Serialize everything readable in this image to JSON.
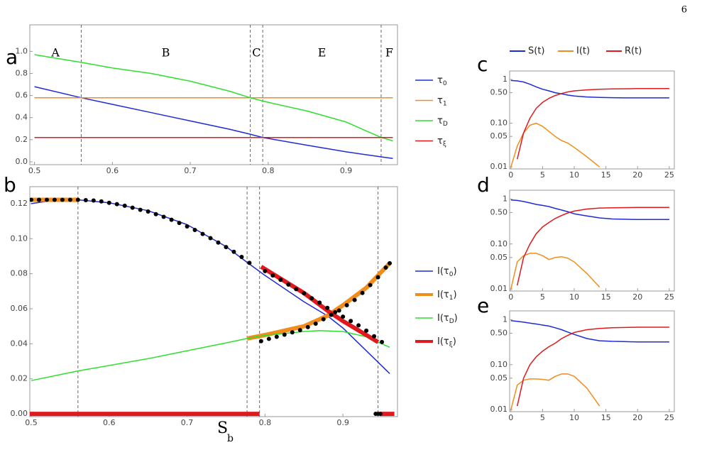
{
  "page_number": 6,
  "chart_data": [
    {
      "type": "line",
      "panel_label": "a",
      "xlim": [
        0.494,
        0.966
      ],
      "ylim": [
        -0.026,
        1.24
      ],
      "xticks": [
        0.5,
        0.6,
        0.7,
        0.8,
        0.9
      ],
      "yticks": [
        {
          "value": 0,
          "label": "0.0"
        },
        0.2,
        0.4,
        0.6,
        0.8,
        {
          "value": 1,
          "label": "1.0"
        }
      ],
      "vlines": [
        0.56,
        0.777,
        0.793,
        0.945
      ],
      "regions": [
        "A",
        "B",
        "C",
        "E",
        "F"
      ],
      "legend": "right",
      "x": [
        0.5,
        0.56,
        0.6,
        0.65,
        0.7,
        0.75,
        0.777,
        0.793,
        0.85,
        0.9,
        0.945,
        0.96
      ],
      "series": [
        {
          "name": "τ0",
          "color": "#1f2bd6",
          "values": [
            0.68,
            0.58,
            0.52,
            0.445,
            0.37,
            0.295,
            0.25,
            0.22,
            0.15,
            0.09,
            0.045,
            0.03
          ]
        },
        {
          "name": "τ1",
          "color": "#f28c1c",
          "values": [
            0.58,
            0.58,
            0.58,
            0.58,
            0.58,
            0.58,
            0.58,
            0.58,
            0.58,
            0.58,
            0.58,
            0.58
          ]
        },
        {
          "name": "τD",
          "color": "#2ee02e",
          "values": [
            0.97,
            0.9,
            0.85,
            0.8,
            0.73,
            0.64,
            0.58,
            0.55,
            0.46,
            0.36,
            0.22,
            0.19
          ]
        },
        {
          "name": "τξ",
          "color": "#e0191e",
          "values": [
            0.22,
            0.22,
            0.22,
            0.22,
            0.22,
            0.22,
            0.22,
            0.22,
            0.22,
            0.22,
            0.22,
            0.22
          ]
        }
      ]
    },
    {
      "type": "line",
      "panel_label": "b",
      "xlabel": "S",
      "xlabel_subscript": "b",
      "xlim": [
        0.4982,
        0.97
      ],
      "ylim": [
        -0.0016,
        0.1297
      ],
      "xticks": [
        0.5,
        0.6,
        0.7,
        0.8,
        0.9
      ],
      "yticks": [
        {
          "value": 0,
          "label": "0.00"
        },
        0.02,
        0.04,
        0.06,
        0.08,
        {
          "value": 0.1,
          "label": "0.10"
        },
        0.12
      ],
      "vlines": [
        0.56,
        0.777,
        0.793,
        0.945
      ],
      "legend": "right",
      "series": [
        {
          "name": "I(τ0)",
          "color": "#1f2bd6",
          "line_width": 1.5,
          "x": [
            0.5,
            0.53,
            0.56,
            0.6,
            0.65,
            0.7,
            0.75,
            0.777,
            0.8,
            0.85,
            0.88,
            0.9,
            0.93,
            0.96
          ],
          "values": [
            0.12,
            0.122,
            0.1222,
            0.1205,
            0.116,
            0.108,
            0.0955,
            0.0865,
            0.079,
            0.064,
            0.056,
            0.049,
            0.036,
            0.023
          ]
        },
        {
          "name": "I(τ1)",
          "color": "#f28c1c",
          "line_width": 6,
          "x": [
            0.5,
            0.53,
            0.56,
            0.65,
            0.777,
            0.8,
            0.85,
            0.88,
            0.9,
            0.93,
            0.96
          ],
          "values": [
            0.1222,
            0.1222,
            0.1222,
            null,
            0.043,
            0.045,
            0.05,
            0.056,
            0.062,
            0.072,
            0.086
          ]
        },
        {
          "name": "I(τD)",
          "color": "#2ee02e",
          "line_width": 1.5,
          "x": [
            0.5,
            0.56,
            0.65,
            0.75,
            0.777,
            0.8,
            0.85,
            0.87,
            0.9,
            0.93,
            0.96
          ],
          "values": [
            0.019,
            0.0245,
            0.0315,
            0.0405,
            0.043,
            0.0448,
            0.047,
            0.0475,
            0.047,
            0.044,
            0.038
          ]
        },
        {
          "name": "I(τξ)",
          "color": "#e0191e",
          "line_width": 6,
          "x": [
            0.495,
            0.793,
            0.794,
            0.795,
            0.85,
            0.88,
            0.9,
            0.945,
            0.946,
            0.947,
            0.966
          ],
          "values": [
            0,
            0,
            null,
            0.084,
            0.069,
            0.059,
            0.053,
            0.041,
            null,
            0,
            0
          ]
        },
        {
          "color": "#000000",
          "style": "dots",
          "x": [
            0.5,
            0.51,
            0.52,
            0.53,
            0.54,
            0.55,
            0.56,
            0.57,
            0.58,
            0.59,
            0.6,
            0.61,
            0.62,
            0.63,
            0.64,
            0.65,
            0.66,
            0.67,
            0.68,
            0.69,
            0.7,
            0.71,
            0.72,
            0.73,
            0.74,
            0.75,
            0.76,
            0.77,
            0.78,
            0.8,
            0.81,
            0.82,
            0.83,
            0.84,
            0.85,
            0.86,
            0.87,
            0.88,
            0.89,
            0.9,
            0.91,
            0.92,
            0.93,
            0.94,
            0.95,
            0.795,
            0.805,
            0.815,
            0.825,
            0.835,
            0.845,
            0.855,
            0.865,
            0.875,
            0.885,
            0.895,
            0.905,
            0.915,
            0.925,
            0.935,
            0.945,
            0.955,
            0.96,
            0.942,
            0.945,
            0.948
          ],
          "values": [
            0.1222,
            0.1222,
            0.1222,
            0.1222,
            0.1222,
            0.1222,
            0.1222,
            0.122,
            0.1218,
            0.1213,
            0.1205,
            0.1197,
            0.1188,
            0.1177,
            0.1165,
            0.1155,
            0.114,
            0.1125,
            0.1108,
            0.109,
            0.107,
            0.105,
            0.1027,
            0.1003,
            0.0978,
            0.0952,
            0.0925,
            0.0896,
            0.0862,
            0.0815,
            0.079,
            0.0765,
            0.0738,
            0.0712,
            0.0688,
            0.066,
            0.0635,
            0.0605,
            0.058,
            0.0555,
            0.053,
            0.0505,
            0.0475,
            0.0443,
            0.041,
            0.0415,
            0.0428,
            0.044,
            0.0452,
            0.0465,
            0.0478,
            0.0495,
            0.0515,
            0.054,
            0.0565,
            0.059,
            0.062,
            0.065,
            0.069,
            0.0735,
            0.078,
            0.0835,
            0.086,
            0,
            0,
            0
          ]
        }
      ]
    },
    {
      "type": "line",
      "panel_label": "c",
      "log_y": true,
      "legend": "top",
      "xlim": [
        -0.2,
        25.8
      ],
      "ylim": [
        0.009,
        1.57
      ],
      "xticks": [
        0,
        5,
        10,
        15,
        20,
        25
      ],
      "yticks": [
        0.01,
        0.05,
        {
          "value": 0.1,
          "label": "0.10"
        },
        {
          "value": 0.5,
          "label": "0.50"
        },
        1
      ],
      "x": [
        0,
        1,
        2,
        3,
        4,
        5,
        6,
        7,
        8,
        9,
        10,
        12,
        14,
        16,
        18,
        20,
        25
      ],
      "series": [
        {
          "name": "S(t)",
          "color": "#1f2bd6",
          "values": [
            0.95,
            0.93,
            0.88,
            0.78,
            0.68,
            0.6,
            0.55,
            0.5,
            0.47,
            0.44,
            0.42,
            0.4,
            0.39,
            0.385,
            0.38,
            0.38,
            0.38
          ]
        },
        {
          "name": "I(t)",
          "color": "#f28c1c",
          "values": [
            0.01,
            0.03,
            0.06,
            0.09,
            0.1,
            0.085,
            0.065,
            0.05,
            0.04,
            0.035,
            0.028,
            0.017,
            0.01,
            null,
            null,
            null,
            null
          ]
        },
        {
          "name": "R(t)",
          "color": "#e0191e",
          "values": [
            null,
            0.015,
            0.06,
            0.13,
            0.22,
            0.3,
            0.37,
            0.43,
            0.48,
            0.52,
            0.55,
            0.58,
            0.6,
            0.61,
            0.615,
            0.62,
            0.62
          ]
        }
      ]
    },
    {
      "type": "line",
      "panel_label": "d",
      "log_y": true,
      "xlim": [
        -0.2,
        25.8
      ],
      "ylim": [
        0.009,
        1.57
      ],
      "xticks": [
        0,
        5,
        10,
        15,
        20,
        25
      ],
      "yticks": [
        0.01,
        0.05,
        {
          "value": 0.1,
          "label": "0.10"
        },
        {
          "value": 0.5,
          "label": "0.50"
        },
        1
      ],
      "x": [
        0,
        1,
        2,
        3,
        4,
        5,
        6,
        7,
        8,
        9,
        10,
        12,
        14,
        16,
        18,
        20,
        25
      ],
      "series": [
        {
          "color": "#1f2bd6",
          "values": [
            0.95,
            0.93,
            0.88,
            0.82,
            0.76,
            0.72,
            0.68,
            0.62,
            0.57,
            0.52,
            0.47,
            0.42,
            0.38,
            0.36,
            0.355,
            0.35,
            0.35
          ]
        },
        {
          "color": "#f28c1c",
          "values": [
            0.01,
            0.04,
            0.055,
            0.062,
            0.062,
            0.055,
            0.045,
            0.05,
            0.052,
            0.048,
            0.04,
            0.022,
            0.011,
            null,
            null,
            null,
            null
          ]
        },
        {
          "color": "#e0191e",
          "values": [
            null,
            0.012,
            0.05,
            0.1,
            0.17,
            0.24,
            0.3,
            0.37,
            0.43,
            0.49,
            0.54,
            0.6,
            0.63,
            0.64,
            0.645,
            0.65,
            0.65
          ]
        }
      ]
    },
    {
      "type": "line",
      "panel_label": "e",
      "log_y": true,
      "xlim": [
        -0.2,
        25.8
      ],
      "ylim": [
        0.009,
        1.57
      ],
      "xticks": [
        0,
        5,
        10,
        15,
        20,
        25
      ],
      "yticks": [
        0.01,
        0.05,
        {
          "value": 0.1,
          "label": "0.10"
        },
        {
          "value": 0.5,
          "label": "0.50"
        },
        1
      ],
      "x": [
        0,
        1,
        2,
        3,
        4,
        5,
        6,
        7,
        8,
        9,
        10,
        12,
        14,
        16,
        18,
        20,
        25
      ],
      "series": [
        {
          "color": "#1f2bd6",
          "values": [
            0.95,
            0.92,
            0.88,
            0.84,
            0.8,
            0.76,
            0.72,
            0.66,
            0.6,
            0.53,
            0.47,
            0.38,
            0.34,
            0.33,
            0.325,
            0.32,
            0.32
          ]
        },
        {
          "color": "#f28c1c",
          "values": [
            0.01,
            0.035,
            0.045,
            0.048,
            0.048,
            0.047,
            0.045,
            0.055,
            0.062,
            0.062,
            0.055,
            0.03,
            0.012,
            null,
            null,
            null,
            null
          ]
        },
        {
          "color": "#e0191e",
          "values": [
            null,
            0.012,
            0.05,
            0.1,
            0.15,
            0.2,
            0.25,
            0.3,
            0.38,
            0.45,
            0.52,
            0.6,
            0.64,
            0.66,
            0.67,
            0.68,
            0.68
          ]
        }
      ]
    }
  ]
}
